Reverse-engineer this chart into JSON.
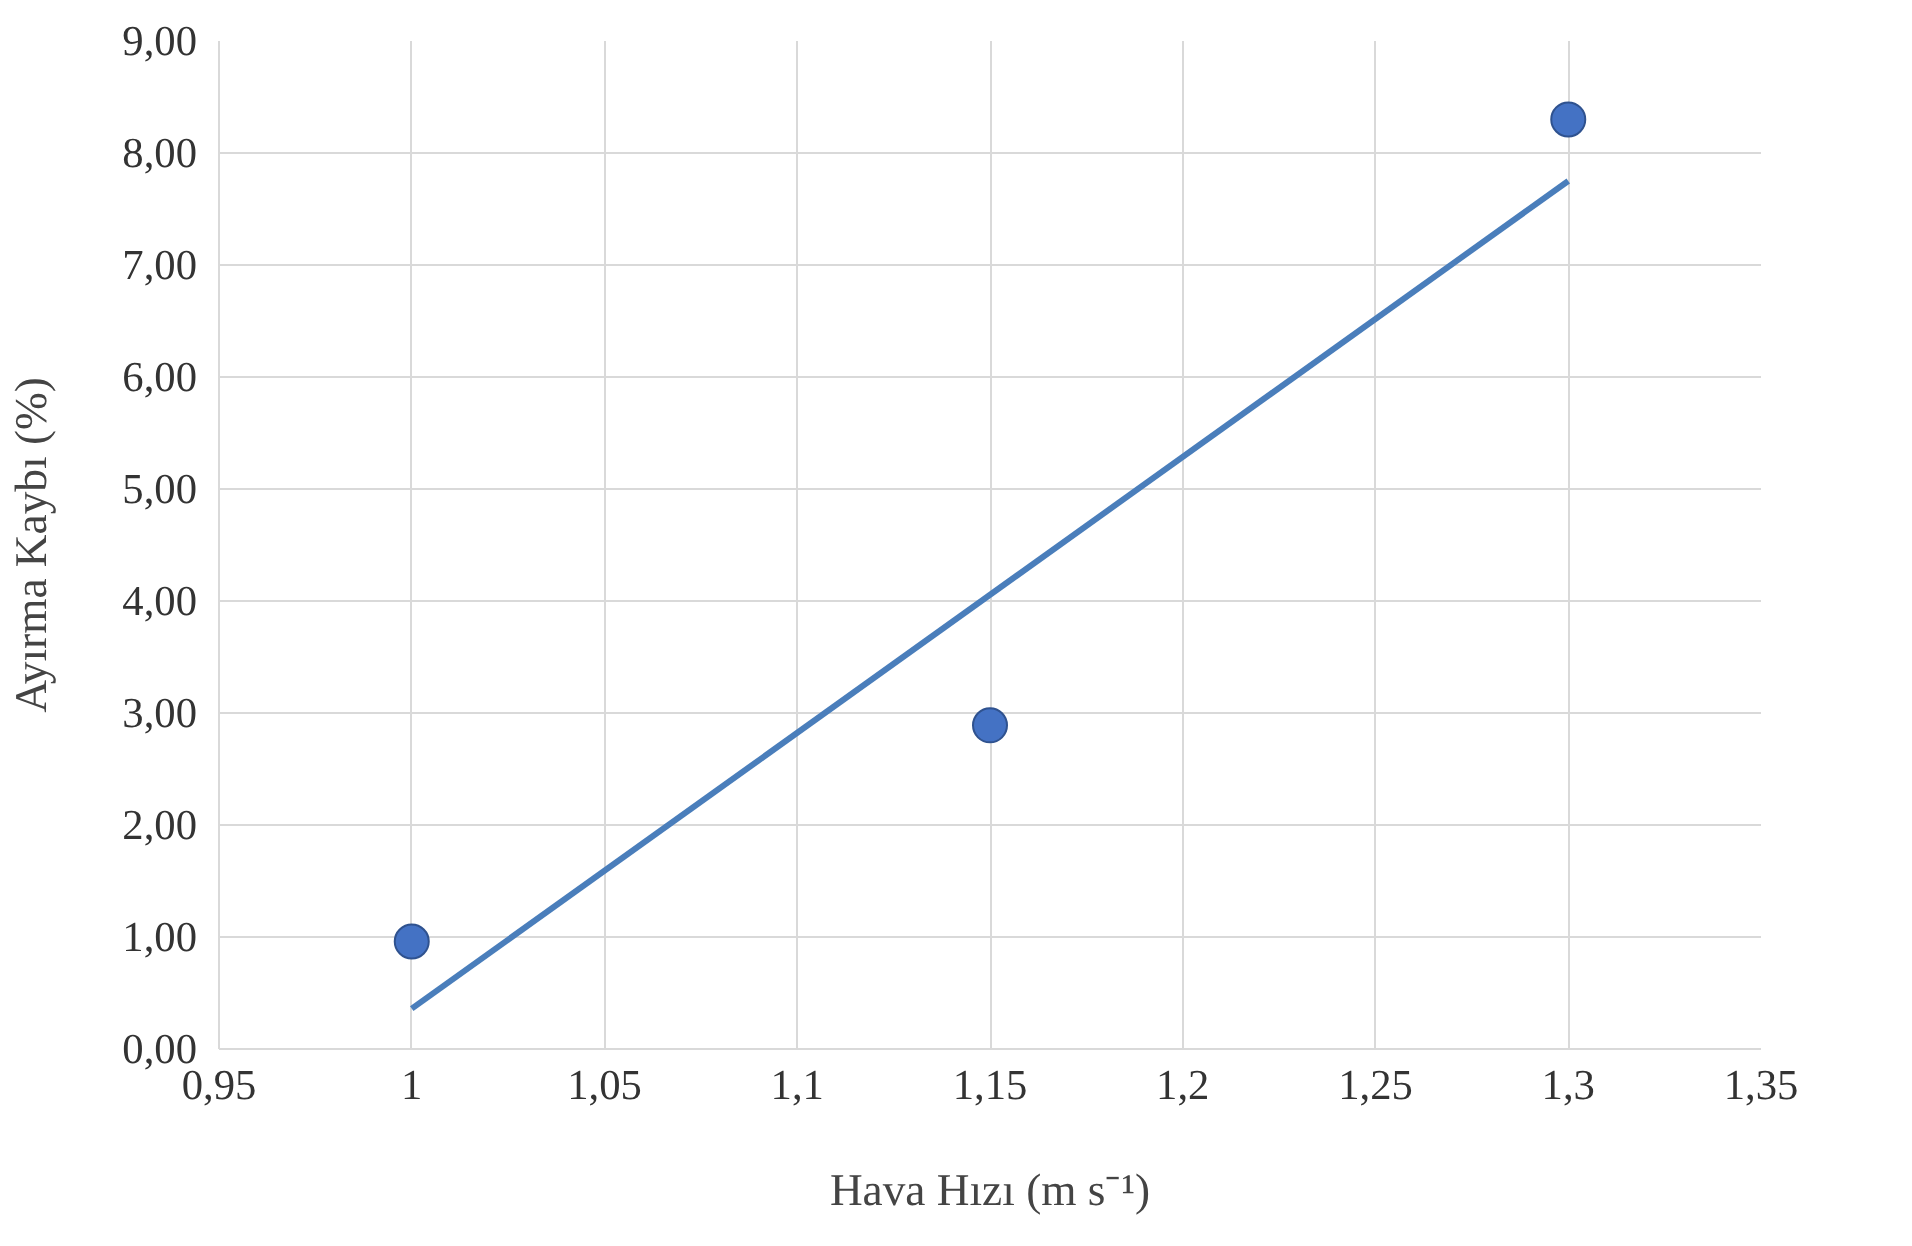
{
  "chart_data": {
    "type": "scatter",
    "xlabel": "Hava Hızı (m s⁻¹)",
    "ylabel": "Ayırma Kaybı (%)",
    "x": [
      1,
      1.15,
      1.3
    ],
    "series": [
      {
        "color": "#4472c4",
        "values": [
          0.96,
          2.89,
          8.3
        ],
        "marker": "circle"
      },
      {
        "type": "line",
        "color": "#4a7ebb",
        "x": [
          1,
          1.3
        ],
        "values": [
          0.36,
          7.75
        ],
        "line_style": "solid"
      }
    ],
    "xlim": [
      0.95,
      1.35
    ],
    "ylim": [
      0,
      9
    ],
    "xticks": [
      {
        "value": 0.95,
        "label": "0,95"
      },
      1,
      {
        "value": 1.05,
        "label": "1,05"
      },
      {
        "value": 1.1,
        "label": "1,1"
      },
      {
        "value": 1.15,
        "label": "1,15"
      },
      {
        "value": 1.2,
        "label": "1,2"
      },
      {
        "value": 1.25,
        "label": "1,25"
      },
      {
        "value": 1.3,
        "label": "1,3"
      },
      {
        "value": 1.35,
        "label": "1,35"
      }
    ],
    "yticks": [
      {
        "value": 0,
        "label": "0,00"
      },
      {
        "value": 1,
        "label": "1,00"
      },
      {
        "value": 2,
        "label": "2,00"
      },
      {
        "value": 3,
        "label": "3,00"
      },
      {
        "value": 4,
        "label": "4,00"
      },
      {
        "value": 5,
        "label": "5,00"
      },
      {
        "value": 6,
        "label": "6,00"
      },
      {
        "value": 7,
        "label": "7,00"
      },
      {
        "value": 8,
        "label": "8,00"
      },
      {
        "value": 9,
        "label": "9,00"
      }
    ],
    "grid": true
  }
}
